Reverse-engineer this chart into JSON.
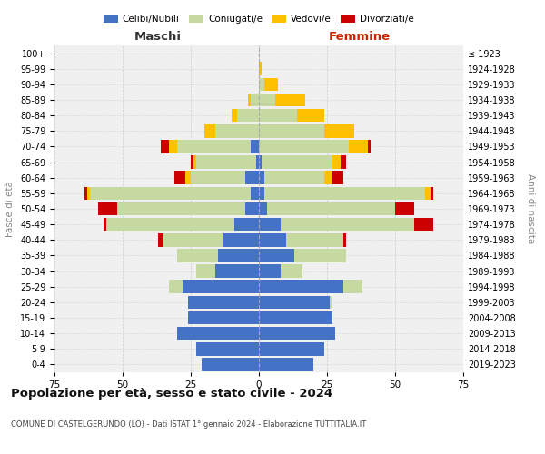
{
  "age_groups": [
    "0-4",
    "5-9",
    "10-14",
    "15-19",
    "20-24",
    "25-29",
    "30-34",
    "35-39",
    "40-44",
    "45-49",
    "50-54",
    "55-59",
    "60-64",
    "65-69",
    "70-74",
    "75-79",
    "80-84",
    "85-89",
    "90-94",
    "95-99",
    "100+"
  ],
  "birth_years": [
    "2019-2023",
    "2014-2018",
    "2009-2013",
    "2004-2008",
    "1999-2003",
    "1994-1998",
    "1989-1993",
    "1984-1988",
    "1979-1983",
    "1974-1978",
    "1969-1973",
    "1964-1968",
    "1959-1963",
    "1954-1958",
    "1949-1953",
    "1944-1948",
    "1939-1943",
    "1934-1938",
    "1929-1933",
    "1924-1928",
    "≤ 1923"
  ],
  "maschi": {
    "celibi": [
      21,
      23,
      30,
      26,
      26,
      28,
      16,
      15,
      13,
      9,
      5,
      3,
      5,
      1,
      3,
      0,
      0,
      0,
      0,
      0,
      0
    ],
    "coniugati": [
      0,
      0,
      0,
      0,
      0,
      5,
      7,
      15,
      22,
      47,
      47,
      59,
      20,
      22,
      27,
      16,
      8,
      3,
      0,
      0,
      0
    ],
    "vedovi": [
      0,
      0,
      0,
      0,
      0,
      0,
      0,
      0,
      0,
      0,
      0,
      1,
      2,
      1,
      3,
      4,
      2,
      1,
      0,
      0,
      0
    ],
    "divorziati": [
      0,
      0,
      0,
      0,
      0,
      0,
      0,
      0,
      2,
      1,
      7,
      1,
      4,
      1,
      3,
      0,
      0,
      0,
      0,
      0,
      0
    ]
  },
  "femmine": {
    "nubili": [
      20,
      24,
      28,
      27,
      26,
      31,
      8,
      13,
      10,
      8,
      3,
      2,
      2,
      1,
      0,
      0,
      0,
      0,
      0,
      0,
      0
    ],
    "coniugate": [
      0,
      0,
      0,
      0,
      1,
      7,
      8,
      19,
      21,
      49,
      47,
      59,
      22,
      26,
      33,
      24,
      14,
      6,
      2,
      0,
      0
    ],
    "vedove": [
      0,
      0,
      0,
      0,
      0,
      0,
      0,
      0,
      0,
      0,
      0,
      2,
      3,
      3,
      7,
      11,
      10,
      11,
      5,
      1,
      0
    ],
    "divorziate": [
      0,
      0,
      0,
      0,
      0,
      0,
      0,
      0,
      1,
      7,
      7,
      1,
      4,
      2,
      1,
      0,
      0,
      0,
      0,
      0,
      0
    ]
  },
  "colors": {
    "celibi": "#4472c4",
    "coniugati": "#c5d9a0",
    "vedovi": "#ffc000",
    "divorziati": "#cc0000"
  },
  "xlim": 75,
  "title_main": "Popolazione per età, sesso e stato civile - 2024",
  "title_sub": "COMUNE DI CASTELGERUNDO (LO) - Dati ISTAT 1° gennaio 2024 - Elaborazione TUTTITALIA.IT",
  "ylabel_left": "Fasce di età",
  "ylabel_right": "Anni di nascita",
  "xlabel_left": "Maschi",
  "xlabel_right": "Femmine",
  "bg_color": "#f0f0f0",
  "grid_color": "#cccccc"
}
